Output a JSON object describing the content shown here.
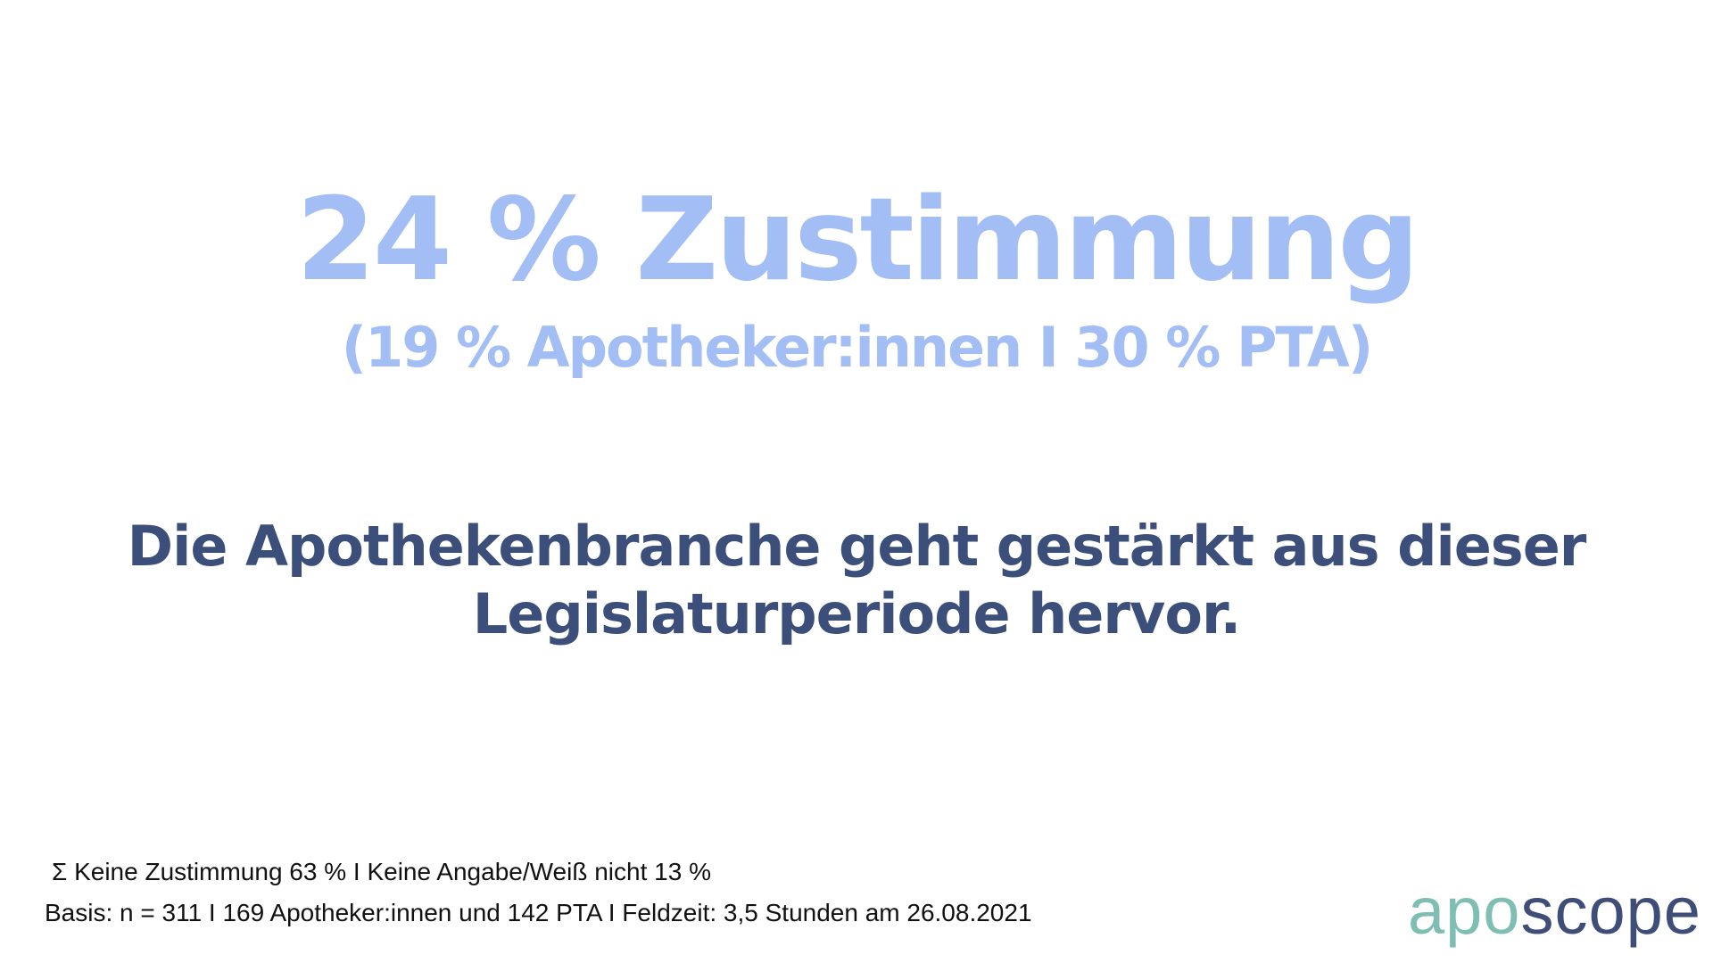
{
  "headline": "24 % Zustimmung",
  "subheadline": "(19 % Apotheker:innen I 30 % PTA)",
  "statement": [
    "Die Apothekenbranche geht gestärkt aus dieser",
    "Legislaturperiode hervor."
  ],
  "footnotes": [
    "Σ Keine Zustimmung 63 % I Keine Angabe/Weiß nicht 13 %",
    "Basis: n = 311 I 169 Apotheker:innen und 142 PTA I Feldzeit: 3,5 Stunden am 26.08.2021"
  ],
  "logo": {
    "part1": "apo",
    "part2": "scope"
  }
}
